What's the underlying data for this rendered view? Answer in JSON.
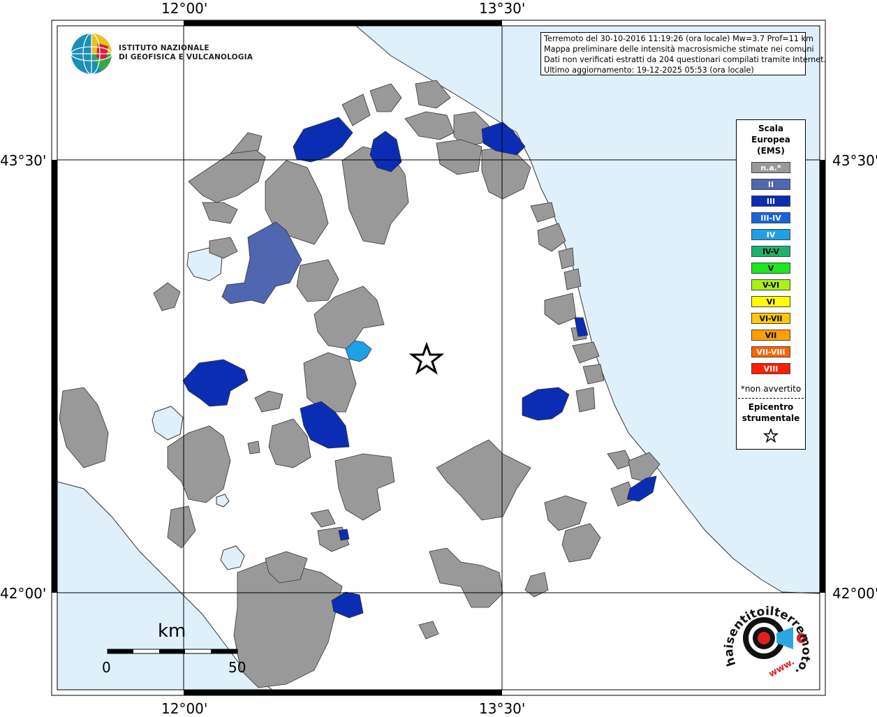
{
  "map": {
    "coords": {
      "lon_left": "12°00'",
      "lon_right": "13°30'",
      "lat_top": "43°30'",
      "lat_bottom": "42°00'"
    },
    "colors": {
      "sea": "#e0f0fb",
      "land": "#ffffff",
      "na": "#999999",
      "border": "#333333"
    }
  },
  "info": {
    "line1": "Terremoto del 30-10-2016 11:19:26 (ora locale) Mw=3.7 Prof=11 km",
    "line2": "Mappa preliminare delle intensità macrosismiche stimate nei comuni",
    "line3": "Dati non verificati estratti da 204 questionari compilati tramite Internet.",
    "line4": "Ultimo aggiornamento: 19-12-2025 05:53 (ora locale)"
  },
  "legend": {
    "title": "Scala\nEuropea\n(EMS)",
    "items": [
      {
        "label": "n.a.*",
        "color": "#999999"
      },
      {
        "label": "II",
        "color": "#4f66b0"
      },
      {
        "label": "III",
        "color": "#0a2db4"
      },
      {
        "label": "III-IV",
        "color": "#1464dc"
      },
      {
        "label": "IV",
        "color": "#1ea0e6"
      },
      {
        "label": "IV-V",
        "color": "#18b46e"
      },
      {
        "label": "V",
        "color": "#1ee61e"
      },
      {
        "label": "V-VI",
        "color": "#aaf014"
      },
      {
        "label": "VI",
        "color": "#ffff00"
      },
      {
        "label": "VI-VII",
        "color": "#ffc800"
      },
      {
        "label": "VII",
        "color": "#ffa000"
      },
      {
        "label": "VII-VIII",
        "color": "#ff6400"
      },
      {
        "label": "VIII",
        "color": "#ff1e00"
      }
    ],
    "footnote": "*non avvertito",
    "epicenter_label": "Epicentro\nstrumentale",
    "epicenter_icon": "star-icon"
  },
  "institute": {
    "line1": "ISTITUTO NAZIONALE",
    "line2": "DI GEOFISICA E VULCANOLOGIA",
    "logo_icon": "globe-icon"
  },
  "scalebar": {
    "unit": "km",
    "min": "0",
    "max": "50"
  },
  "hsi_logo": {
    "text": "haisentitoilterremoto.it",
    "prefix": "www.",
    "icon": "target-icon"
  }
}
